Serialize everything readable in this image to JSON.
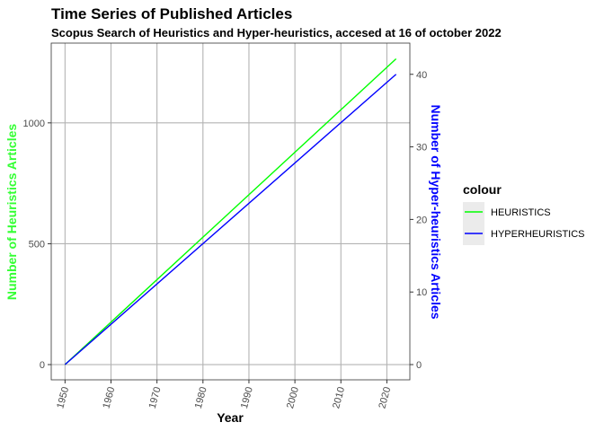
{
  "chart_data": {
    "type": "line",
    "title": "Time Series of Published Articles",
    "subtitle": "Scopus Search of Heuristics and Hyper-heuristics, accesed at 16 of october 2022",
    "xlabel": "Year",
    "ylabel_left": "Number of Heuristics Articles",
    "ylabel_right": "Number of Hyper-heuristics Articles",
    "xlim": [
      1947,
      2025
    ],
    "ylim_left": [
      -63,
      1330
    ],
    "ylim_right": [
      -2.1,
      44.3
    ],
    "x_ticks": [
      "1950",
      "1960",
      "1970",
      "1980",
      "1990",
      "2000",
      "2010",
      "2020"
    ],
    "y_left_ticks": [
      "0",
      "500",
      "1000"
    ],
    "y_right_ticks": [
      "0",
      "10",
      "20",
      "30",
      "40"
    ],
    "grid": true,
    "legend_position": "right",
    "legend_title": "colour",
    "series": [
      {
        "name": "HEURISTICS",
        "axis": "left",
        "color": "#00ff00",
        "x": [
          1950,
          2022
        ],
        "y": [
          0,
          1265
        ]
      },
      {
        "name": "HYPERHEURISTICS",
        "axis": "right",
        "color": "#0000ff",
        "x": [
          1950,
          2022
        ],
        "y": [
          0,
          40
        ]
      }
    ],
    "colors": {
      "panel_background": "#ffffff",
      "grid": "#b3b3b3",
      "left_axis_title": "#33ff33",
      "right_axis_title": "#0000ff",
      "legend_key_background": "#ebebeb"
    }
  }
}
